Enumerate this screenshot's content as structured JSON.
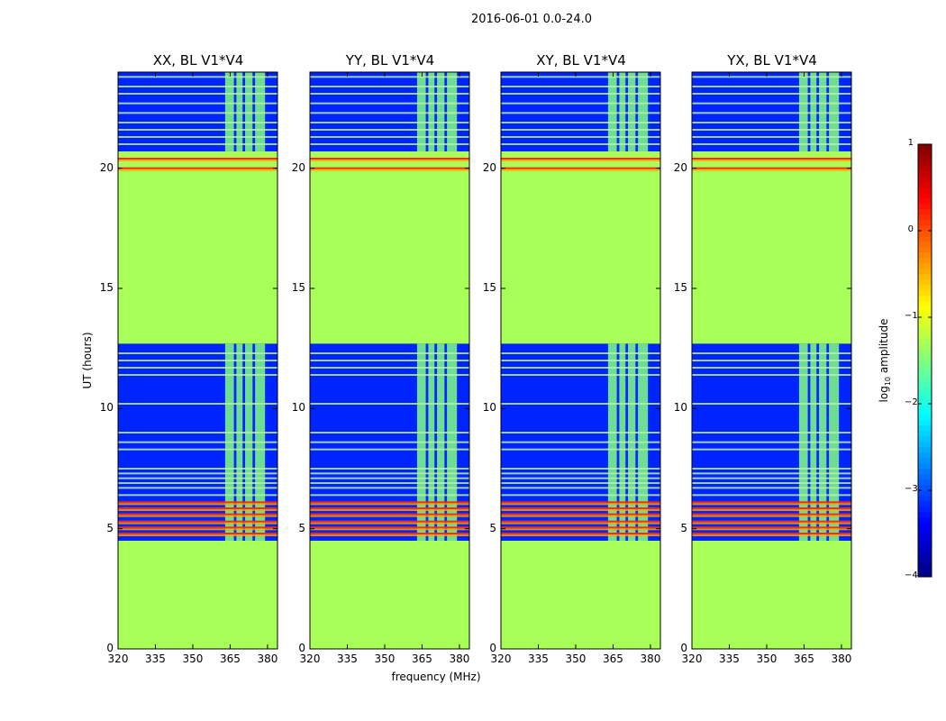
{
  "chart_data": {
    "type": "heatmap",
    "title": "2016-06-01 0.0-24.0",
    "xlabel": "frequency (MHz)",
    "ylabel": "UT (hours)",
    "xlim": [
      320,
      384
    ],
    "ylim": [
      0,
      24
    ],
    "xticks": [
      320,
      335,
      350,
      365,
      380
    ],
    "yticks": [
      0,
      5,
      10,
      15,
      20
    ],
    "colorbar": {
      "label": "log10 amplitude",
      "label_base": "log",
      "label_sub": "10",
      "label_rest": " amplitude",
      "range": [
        -4,
        1
      ],
      "ticks": [
        1,
        0,
        -1,
        -2,
        -3,
        -4
      ],
      "tick_labels": [
        "1",
        "0",
        "−1",
        "−2",
        "−3",
        "−4"
      ],
      "colormap": "jet"
    },
    "panels": [
      {
        "title": "XX, BL V1*V4",
        "polarization": "XX",
        "baseline": "V1*V4"
      },
      {
        "title": "YY, BL V1*V4",
        "polarization": "YY",
        "baseline": "V1*V4"
      },
      {
        "title": "XY, BL V1*V4",
        "polarization": "XY",
        "baseline": "V1*V4"
      },
      {
        "title": "YX, BL V1*V4",
        "polarization": "YX",
        "baseline": "V1*V4"
      }
    ],
    "flagged_value": -1.3,
    "noise_floor": -3.2,
    "data_segments_ut": [
      [
        4.5,
        12.7
      ],
      [
        20.7,
        24.0
      ]
    ],
    "flagged_segments_ut": [
      [
        0,
        4.5
      ],
      [
        12.7,
        20.7
      ]
    ],
    "rfi_band_mhz": [
      363,
      380
    ],
    "rfi_channels_mhz": [
      [
        363,
        366.5
      ],
      [
        367.5,
        370
      ],
      [
        371,
        374
      ],
      [
        375,
        379
      ]
    ],
    "rfi_level": -1.5,
    "red_lines_ut": [
      4.8,
      5.05,
      5.3,
      5.6,
      5.85,
      6.1,
      20.0,
      20.4
    ],
    "light_lines_ut": [
      6.4,
      6.7,
      6.9,
      7.1,
      7.3,
      7.5,
      8.3,
      8.6,
      9.0,
      10.2,
      11.4,
      11.7,
      12.0,
      12.3,
      21.0,
      21.3,
      21.6,
      21.9,
      22.3,
      22.7,
      23.1,
      23.4,
      23.8
    ]
  }
}
